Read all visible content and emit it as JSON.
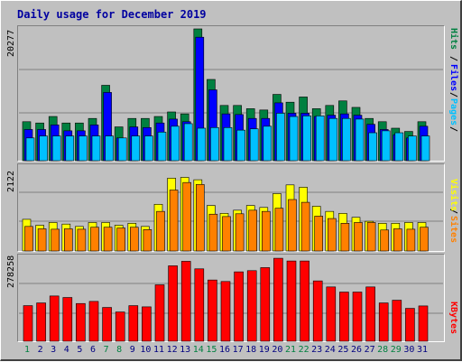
{
  "title": "Daily usage for December 2019",
  "colors": {
    "hits": "#008040",
    "files": "#0000ff",
    "pages": "#00c0ff",
    "visits": "#ffff00",
    "sites": "#ff8000",
    "kbytes": "#ff0000",
    "weekend_day": "#008040",
    "weekday_day": "#000080"
  },
  "chart_data": [
    {
      "type": "bar",
      "title": "Daily usage for December 2019",
      "categories": [
        "1",
        "2",
        "3",
        "4",
        "5",
        "6",
        "7",
        "8",
        "9",
        "10",
        "11",
        "12",
        "13",
        "14",
        "15",
        "16",
        "17",
        "18",
        "19",
        "20",
        "21",
        "22",
        "23",
        "24",
        "25",
        "26",
        "27",
        "28",
        "29",
        "30",
        "31"
      ],
      "weekend_days": [
        "1",
        "7",
        "8",
        "14",
        "15",
        "21",
        "22",
        "28",
        "29"
      ],
      "ymax_label": "20277",
      "ylim": [
        0,
        20277
      ],
      "right_labels": [
        "Pages",
        "Files",
        "Hits"
      ],
      "series": [
        {
          "name": "Hits",
          "values": [
            6000,
            5800,
            6800,
            5800,
            5800,
            6500,
            11600,
            5200,
            6500,
            6500,
            6800,
            7500,
            7200,
            20277,
            12500,
            8500,
            8500,
            8000,
            7800,
            10200,
            9000,
            9800,
            8000,
            8500,
            9200,
            8200,
            6500,
            6000,
            5000,
            4500,
            6000
          ]
        },
        {
          "name": "Files",
          "values": [
            4800,
            4800,
            5500,
            4600,
            4600,
            5500,
            10500,
            3500,
            5200,
            5100,
            5800,
            6400,
            6000,
            19000,
            10900,
            7200,
            7100,
            6500,
            6500,
            8900,
            7300,
            7300,
            6800,
            7000,
            7200,
            7000,
            5600,
            4800,
            4000,
            3500,
            5300
          ]
        },
        {
          "name": "Pages",
          "values": [
            3500,
            3800,
            3800,
            3800,
            3800,
            3800,
            3800,
            3500,
            3800,
            3800,
            4400,
            5300,
            5700,
            5000,
            5100,
            5100,
            4700,
            4900,
            5300,
            7300,
            6800,
            6900,
            6900,
            6500,
            6500,
            6400,
            4300,
            4600,
            4300,
            3800,
            3800
          ]
        }
      ]
    },
    {
      "type": "bar",
      "categories": [
        "1",
        "2",
        "3",
        "4",
        "5",
        "6",
        "7",
        "8",
        "9",
        "10",
        "11",
        "12",
        "13",
        "14",
        "15",
        "16",
        "17",
        "18",
        "19",
        "20",
        "21",
        "22",
        "23",
        "24",
        "25",
        "26",
        "27",
        "28",
        "29",
        "30",
        "31"
      ],
      "ymax_label": "2122",
      "ylim": [
        0,
        2122
      ],
      "right_labels": [
        "Sites",
        "Visits"
      ],
      "series": [
        {
          "name": "Visits",
          "values": [
            800,
            650,
            720,
            680,
            620,
            720,
            720,
            650,
            700,
            620,
            1180,
            1840,
            1860,
            1800,
            1150,
            950,
            1030,
            1150,
            1100,
            1450,
            1670,
            1610,
            1130,
            1000,
            950,
            850,
            750,
            700,
            700,
            720,
            720
          ]
        },
        {
          "name": "Sites",
          "values": [
            620,
            560,
            550,
            560,
            550,
            600,
            600,
            580,
            600,
            540,
            1000,
            1540,
            1730,
            1680,
            930,
            870,
            940,
            1030,
            1000,
            1080,
            1300,
            1230,
            880,
            820,
            700,
            720,
            720,
            530,
            560,
            550,
            600
          ]
        }
      ]
    },
    {
      "type": "bar",
      "categories": [
        "1",
        "2",
        "3",
        "4",
        "5",
        "6",
        "7",
        "8",
        "9",
        "10",
        "11",
        "12",
        "13",
        "14",
        "15",
        "16",
        "17",
        "18",
        "19",
        "20",
        "21",
        "22",
        "23",
        "24",
        "25",
        "26",
        "27",
        "28",
        "29",
        "30",
        "31"
      ],
      "ymax_label": "278258",
      "ylim": [
        0,
        278258
      ],
      "right_labels": [
        "KBytes"
      ],
      "series": [
        {
          "name": "KBytes",
          "values": [
            118000,
            127000,
            150000,
            145000,
            125000,
            132000,
            112000,
            97000,
            118000,
            114000,
            187000,
            250000,
            265000,
            240000,
            203000,
            198000,
            230000,
            234000,
            244000,
            275000,
            266000,
            266000,
            200000,
            180000,
            163000,
            163000,
            180000,
            127000,
            136000,
            109000,
            117000
          ]
        }
      ]
    }
  ]
}
